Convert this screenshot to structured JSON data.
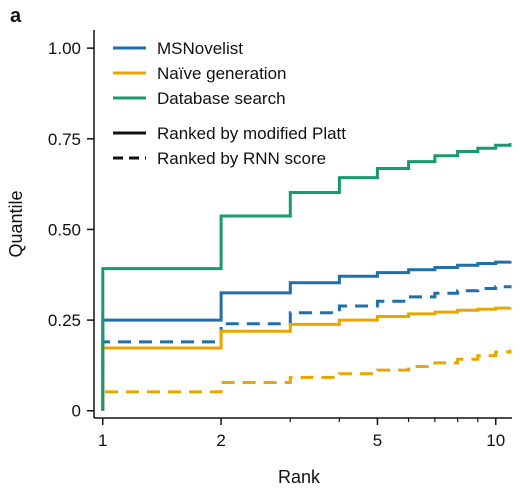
{
  "panel_label": "a",
  "chart_data": {
    "type": "line",
    "xscale": "log",
    "xlabel": "Rank",
    "ylabel": "Quantile",
    "xticks": [
      1,
      2,
      5,
      10
    ],
    "xtick_labels": [
      "1",
      "2",
      "5",
      "10"
    ],
    "yticks": [
      0,
      0.25,
      0.5,
      0.75,
      1.0
    ],
    "ytick_labels": [
      "0",
      "0.25",
      "0.50",
      "0.75",
      "1.00"
    ],
    "xlim": [
      0.95,
      11
    ],
    "ylim": [
      -0.02,
      1.05
    ],
    "grid": false,
    "legend_position": "top-left",
    "legend_colors": [
      {
        "label": "MSNovelist",
        "color": "#1f6fa8"
      },
      {
        "label": "Naïve generation",
        "color": "#e8a600"
      },
      {
        "label": "Database search",
        "color": "#1a9a6c"
      }
    ],
    "legend_styles": [
      {
        "label": "Ranked by modified Platt",
        "dash": "solid"
      },
      {
        "label": "Ranked by RNN score",
        "dash": "dashed"
      }
    ],
    "x": [
      1,
      2,
      3,
      4,
      5,
      6,
      7,
      8,
      9,
      10,
      11
    ],
    "series": [
      {
        "name": "MSNovelist",
        "ranking": "Ranked by modified Platt",
        "color": "#1f6fa8",
        "dash": "solid",
        "values": [
          0.25,
          0.325,
          0.353,
          0.371,
          0.381,
          0.389,
          0.395,
          0.401,
          0.406,
          0.41,
          0.413
        ]
      },
      {
        "name": "MSNovelist",
        "ranking": "Ranked by RNN score",
        "color": "#1f6fa8",
        "dash": "dashed",
        "values": [
          0.19,
          0.24,
          0.27,
          0.289,
          0.302,
          0.314,
          0.324,
          0.331,
          0.337,
          0.342,
          0.346
        ]
      },
      {
        "name": "Naïve generation",
        "ranking": "Ranked by modified Platt",
        "color": "#e8a600",
        "dash": "solid",
        "values": [
          0.173,
          0.219,
          0.238,
          0.25,
          0.26,
          0.267,
          0.272,
          0.277,
          0.28,
          0.283,
          0.285
        ]
      },
      {
        "name": "Naïve generation",
        "ranking": "Ranked by RNN score",
        "color": "#e8a600",
        "dash": "dashed",
        "values": [
          0.052,
          0.078,
          0.092,
          0.102,
          0.112,
          0.122,
          0.132,
          0.142,
          0.152,
          0.162,
          0.168
        ]
      },
      {
        "name": "Database search",
        "ranking": "Ranked by modified Platt",
        "color": "#1a9a6c",
        "dash": "solid",
        "values": [
          0.392,
          0.537,
          0.602,
          0.643,
          0.668,
          0.687,
          0.703,
          0.715,
          0.724,
          0.732,
          0.738
        ]
      }
    ]
  }
}
